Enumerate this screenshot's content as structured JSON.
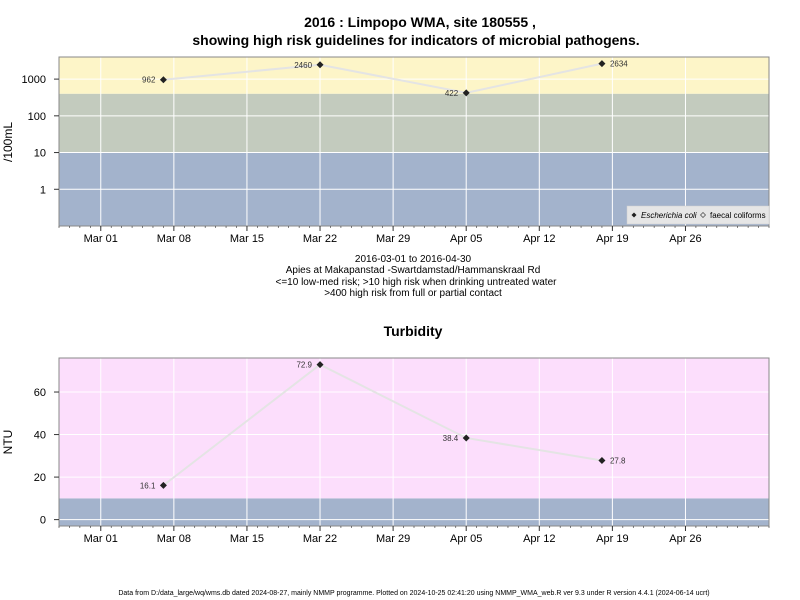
{
  "figure": {
    "title_line1": "2016 : Limpopo WMA, site 180555 ,",
    "title_line2": "showing high risk guidelines for indicators of microbial pathogens.",
    "caption": [
      "2016-03-01 to 2016-04-30",
      "Apies at Makapanstad -Swartdamstad/Hammanskraal Rd",
      "<=10 low-med risk; >10 high risk when drinking untreated water",
      ">400 high risk from full or partial contact"
    ],
    "footer": "Data from D:/data_large/wq/wms.db dated 2024-08-27, mainly NMMP programme. Plotted on 2024-10-25 02:41:20 using NMMP_WMA_web.R ver 9.3 under R version 4.4.1 (2024-06-14 ucrt)"
  },
  "colors": {
    "risk_high": "#fdf5c8",
    "risk_med": "#c3cbbe",
    "risk_low": "#a3b3cc",
    "turbidity_bg": "#fcdefc",
    "turbidity_low": "#a3b3cc",
    "grid": "#ffffff",
    "line": "#e4e4e4",
    "point": "#222222"
  },
  "chart_data": [
    {
      "type": "line",
      "title": "",
      "xlabel": "",
      "ylabel": "/100mL",
      "y_scale": "log",
      "ylim": [
        0.1,
        4000
      ],
      "xlim": [
        "2016-02-26",
        "2016-05-04"
      ],
      "x_ticks": [
        "Mar 01",
        "Mar 08",
        "Mar 15",
        "Mar 22",
        "Mar 29",
        "Apr 05",
        "Apr 12",
        "Apr 19",
        "Apr 26"
      ],
      "x_tick_dates": [
        "2016-03-01",
        "2016-03-08",
        "2016-03-15",
        "2016-03-22",
        "2016-03-29",
        "2016-04-05",
        "2016-04-12",
        "2016-04-19",
        "2016-04-26"
      ],
      "y_ticks": [
        "1",
        "10",
        "100",
        "1000"
      ],
      "y_tick_values": [
        1,
        10,
        100,
        1000
      ],
      "bands": [
        {
          "from": 0.1,
          "to": 10,
          "color": "#a3b3cc"
        },
        {
          "from": 10,
          "to": 400,
          "color": "#c3cbbe"
        },
        {
          "from": 400,
          "to": 4000,
          "color": "#fdf5c8"
        }
      ],
      "grid": true,
      "legend_position": "bottom-right",
      "legend": [
        "Escherichia coli",
        "faecal coliforms"
      ],
      "series": [
        {
          "name": "Escherichia coli",
          "x": [
            "2016-03-07",
            "2016-03-22",
            "2016-04-05",
            "2016-04-18"
          ],
          "y": [
            962,
            2460,
            422,
            2634
          ],
          "labels": [
            "962",
            "2460",
            "422",
            "2634"
          ]
        }
      ]
    },
    {
      "type": "line",
      "title": "Turbidity",
      "xlabel": "",
      "ylabel": "NTU",
      "y_scale": "linear",
      "ylim": [
        -3,
        76
      ],
      "xlim": [
        "2016-02-26",
        "2016-05-04"
      ],
      "x_ticks": [
        "Mar 01",
        "Mar 08",
        "Mar 15",
        "Mar 22",
        "Mar 29",
        "Apr 05",
        "Apr 12",
        "Apr 19",
        "Apr 26"
      ],
      "x_tick_dates": [
        "2016-03-01",
        "2016-03-08",
        "2016-03-15",
        "2016-03-22",
        "2016-03-29",
        "2016-04-05",
        "2016-04-12",
        "2016-04-19",
        "2016-04-26"
      ],
      "y_ticks": [
        "0",
        "20",
        "40",
        "60"
      ],
      "y_tick_values": [
        0,
        20,
        40,
        60
      ],
      "bands": [
        {
          "from": -3,
          "to": 10,
          "color": "#a3b3cc"
        },
        {
          "from": 10,
          "to": 76,
          "color": "#fcdefc"
        }
      ],
      "grid": true,
      "series": [
        {
          "x": [
            "2016-03-07",
            "2016-03-22",
            "2016-04-05",
            "2016-04-18"
          ],
          "y": [
            16.1,
            72.9,
            38.4,
            27.8
          ],
          "labels": [
            "16.1",
            "72.9",
            "38.4",
            "27.8"
          ]
        }
      ]
    }
  ]
}
